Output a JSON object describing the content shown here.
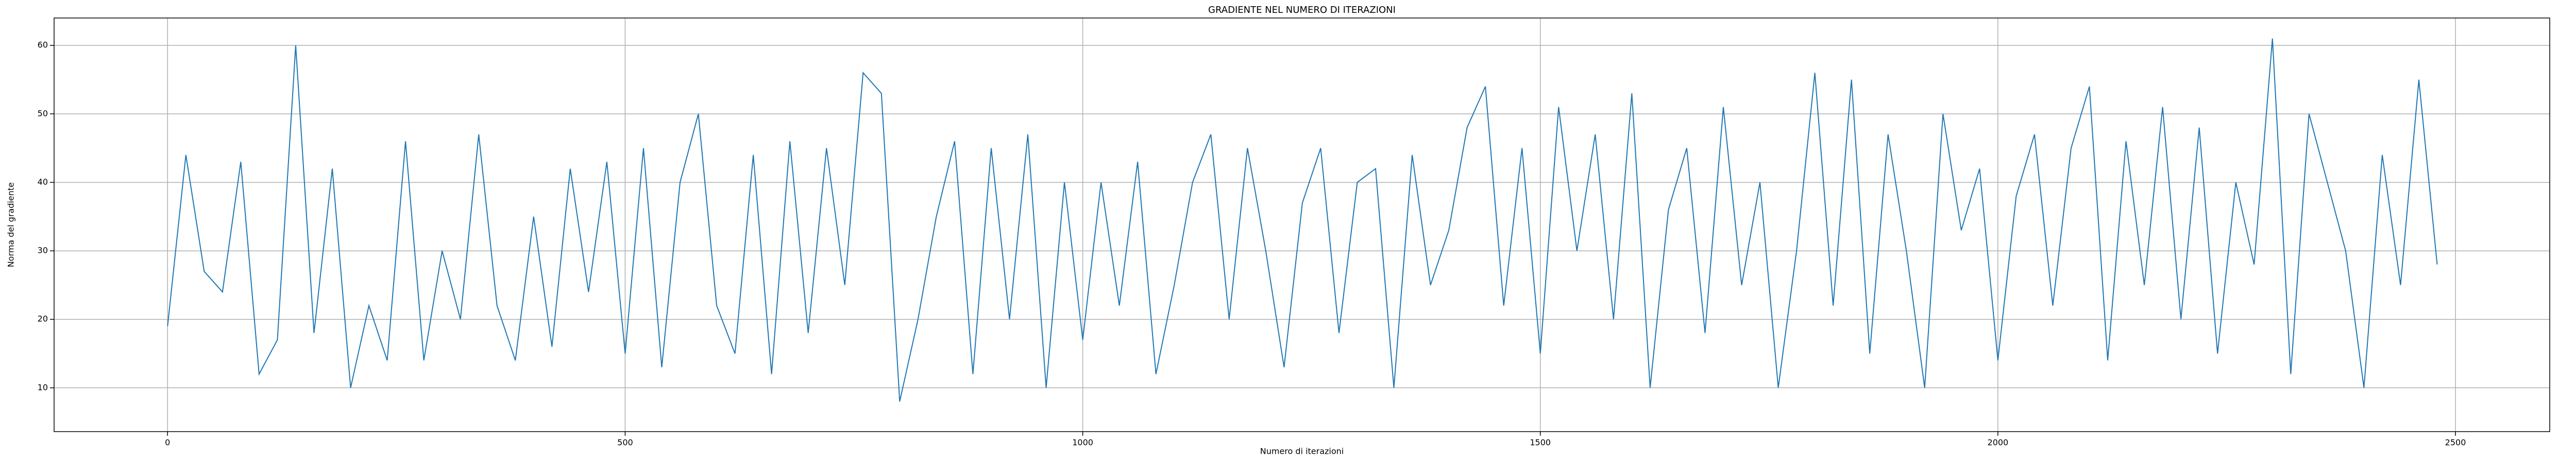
{
  "chart_data": {
    "type": "line",
    "title": "GRADIENTE NEL NUMERO DI ITERAZIONI",
    "x_label": "Numero di iterazioni",
    "y_label": "Norma del gradiente",
    "color": "#1f77b4",
    "grid": true,
    "xlim": [
      -124,
      2603
    ],
    "ylim": [
      3.6,
      64.0
    ],
    "xticks": [
      0,
      500,
      1000,
      1500,
      2000,
      2500
    ],
    "yticks": [
      10,
      20,
      30,
      40,
      50,
      60
    ],
    "x": [
      0,
      20,
      40,
      60,
      80,
      100,
      120,
      140,
      160,
      180,
      200,
      220,
      240,
      260,
      280,
      300,
      320,
      340,
      360,
      380,
      400,
      420,
      440,
      460,
      480,
      500,
      520,
      540,
      560,
      580,
      600,
      620,
      640,
      660,
      680,
      700,
      720,
      740,
      760,
      780,
      800,
      820,
      840,
      860,
      880,
      900,
      920,
      940,
      960,
      980,
      1000,
      1020,
      1040,
      1060,
      1080,
      1100,
      1120,
      1140,
      1160,
      1180,
      1200,
      1220,
      1240,
      1260,
      1280,
      1300,
      1320,
      1340,
      1360,
      1380,
      1400,
      1420,
      1440,
      1460,
      1480,
      1500,
      1520,
      1540,
      1560,
      1580,
      1600,
      1620,
      1640,
      1660,
      1680,
      1700,
      1720,
      1740,
      1760,
      1780,
      1800,
      1820,
      1840,
      1860,
      1880,
      1900,
      1920,
      1940,
      1960,
      1980,
      2000,
      2020,
      2040,
      2060,
      2080,
      2100,
      2120,
      2140,
      2160,
      2180,
      2200,
      2220,
      2240,
      2260,
      2280,
      2300,
      2320,
      2340,
      2360,
      2380,
      2400,
      2420,
      2440,
      2460,
      2480
    ],
    "values": [
      19,
      44,
      27,
      24,
      43,
      12,
      17,
      60,
      18,
      42,
      10,
      22,
      14,
      46,
      14,
      30,
      20,
      47,
      22,
      14,
      35,
      16,
      42,
      24,
      43,
      15,
      45,
      13,
      40,
      50,
      22,
      15,
      44,
      12,
      46,
      18,
      45,
      25,
      56,
      53,
      8,
      20,
      35,
      46,
      12,
      45,
      20,
      47,
      10,
      40,
      17,
      40,
      22,
      43,
      12,
      25,
      40,
      47,
      20,
      45,
      30,
      13,
      37,
      45,
      18,
      40,
      42,
      10,
      44,
      25,
      33,
      48,
      54,
      22,
      45,
      15,
      51,
      30,
      47,
      20,
      53,
      10,
      36,
      45,
      18,
      51,
      25,
      40,
      10,
      30,
      56,
      22,
      55,
      15,
      47,
      30,
      10,
      50,
      33,
      42,
      14,
      38,
      47,
      22,
      45,
      54,
      14,
      46,
      25,
      51,
      20,
      48,
      15,
      40,
      28,
      61,
      12,
      50,
      40,
      30,
      10,
      44,
      25,
      55,
      28
    ]
  }
}
